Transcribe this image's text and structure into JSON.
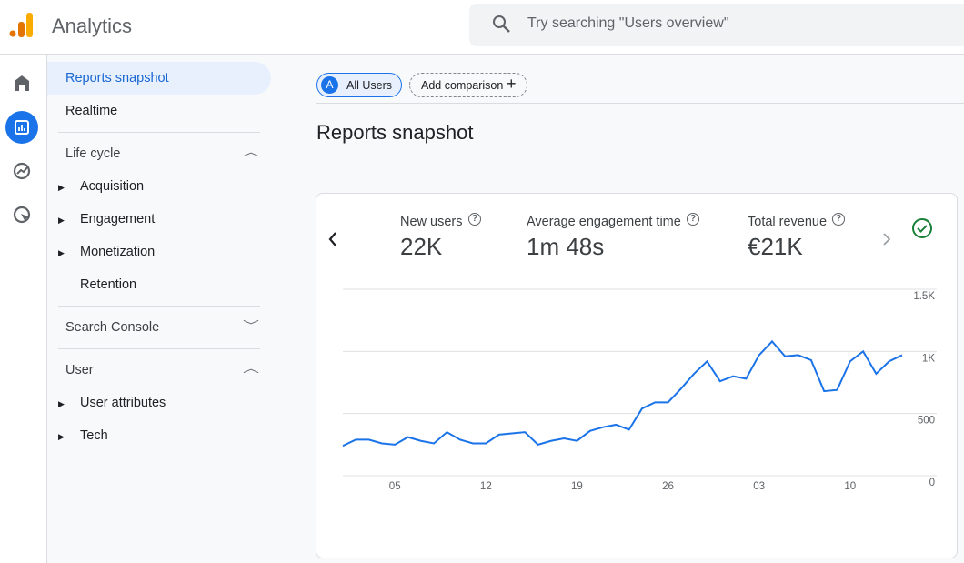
{
  "header": {
    "product": "Analytics",
    "search_placeholder": "Try searching \"Users overview\""
  },
  "nav": {
    "selected": "Reports snapshot",
    "realtime": "Realtime",
    "sections": [
      {
        "title": "Life cycle",
        "items": [
          "Acquisition",
          "Engagement",
          "Monetization",
          "Retention"
        ]
      },
      {
        "title": "Search Console",
        "items": []
      },
      {
        "title": "User",
        "items": [
          "User attributes",
          "Tech"
        ]
      }
    ]
  },
  "chips": {
    "audience_initial": "A",
    "audience": "All Users",
    "add": "Add comparison"
  },
  "page_title": "Reports snapshot",
  "metrics": [
    {
      "label": "New users",
      "value": "22K"
    },
    {
      "label": "Average engagement time",
      "value": "1m 48s"
    },
    {
      "label": "Total revenue",
      "value": "€21K"
    }
  ],
  "chart_data": {
    "type": "line",
    "color": "#1a73e8",
    "grid": true,
    "categories": [
      null,
      null,
      null,
      null,
      "05",
      null,
      null,
      null,
      null,
      null,
      null,
      "12",
      null,
      null,
      null,
      null,
      null,
      null,
      "19",
      null,
      null,
      null,
      null,
      null,
      null,
      "26",
      null,
      null,
      null,
      null,
      null,
      null,
      "03",
      null,
      null,
      null,
      null,
      null,
      null,
      "10",
      null,
      null,
      null,
      null
    ],
    "values": [
      240,
      290,
      290,
      260,
      250,
      310,
      280,
      260,
      350,
      290,
      260,
      260,
      330,
      340,
      350,
      250,
      280,
      300,
      280,
      360,
      390,
      410,
      370,
      540,
      590,
      590,
      700,
      820,
      920,
      760,
      800,
      780,
      970,
      1080,
      960,
      970,
      930,
      680,
      690,
      920,
      1000,
      820,
      920,
      970
    ],
    "ylim": [
      0,
      1500
    ],
    "yticks": [
      0,
      500,
      {
        "value": 1000,
        "label": "1K"
      },
      {
        "value": 1500,
        "label": "1.5K"
      }
    ]
  }
}
